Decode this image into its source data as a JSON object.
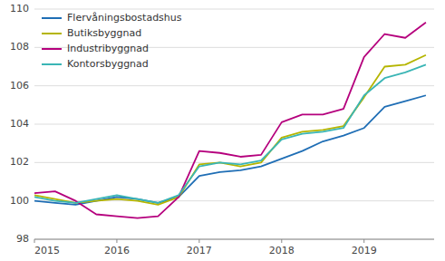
{
  "chart_data": {
    "type": "line",
    "x": [
      2015.0,
      2015.25,
      2015.5,
      2015.75,
      2016.0,
      2016.25,
      2016.5,
      2016.75,
      2017.0,
      2017.25,
      2017.5,
      2017.75,
      2018.0,
      2018.25,
      2018.5,
      2018.75,
      2019.0,
      2019.25,
      2019.5,
      2019.75
    ],
    "series": [
      {
        "name": "Flervåningsbostadshus",
        "color": "#1f6eb5",
        "values": [
          100.0,
          99.9,
          99.8,
          100.0,
          100.2,
          100.1,
          99.9,
          100.2,
          101.3,
          101.5,
          101.6,
          101.8,
          102.2,
          102.6,
          103.1,
          103.4,
          103.8,
          104.9,
          105.2,
          105.5
        ]
      },
      {
        "name": "Butiksbyggnad",
        "color": "#b5b500",
        "values": [
          100.3,
          100.1,
          99.9,
          100.0,
          100.1,
          100.0,
          99.8,
          100.2,
          101.9,
          102.0,
          101.8,
          102.0,
          103.3,
          103.6,
          103.7,
          103.9,
          105.4,
          107.0,
          107.1,
          107.6
        ]
      },
      {
        "name": "Industribyggnad",
        "color": "#b5007d",
        "values": [
          100.4,
          100.5,
          100.0,
          99.3,
          99.2,
          99.1,
          99.2,
          100.2,
          102.6,
          102.5,
          102.3,
          102.4,
          104.1,
          104.5,
          104.5,
          104.8,
          107.5,
          108.7,
          108.5,
          109.3
        ]
      },
      {
        "name": "Kontorsbyggnad",
        "color": "#3ab5b5",
        "values": [
          100.2,
          100.0,
          99.9,
          100.1,
          100.3,
          100.1,
          99.9,
          100.3,
          101.8,
          102.0,
          101.9,
          102.1,
          103.2,
          103.5,
          103.6,
          103.8,
          105.5,
          106.4,
          106.7,
          107.1
        ]
      }
    ],
    "xlim": [
      2015.0,
      2019.85
    ],
    "ylim": [
      98,
      110
    ],
    "xticks": [
      2015,
      2016,
      2017,
      2018,
      2019
    ],
    "yticks": [
      98,
      100,
      102,
      104,
      106,
      108,
      110
    ],
    "grid": true,
    "legend": "upper left"
  }
}
